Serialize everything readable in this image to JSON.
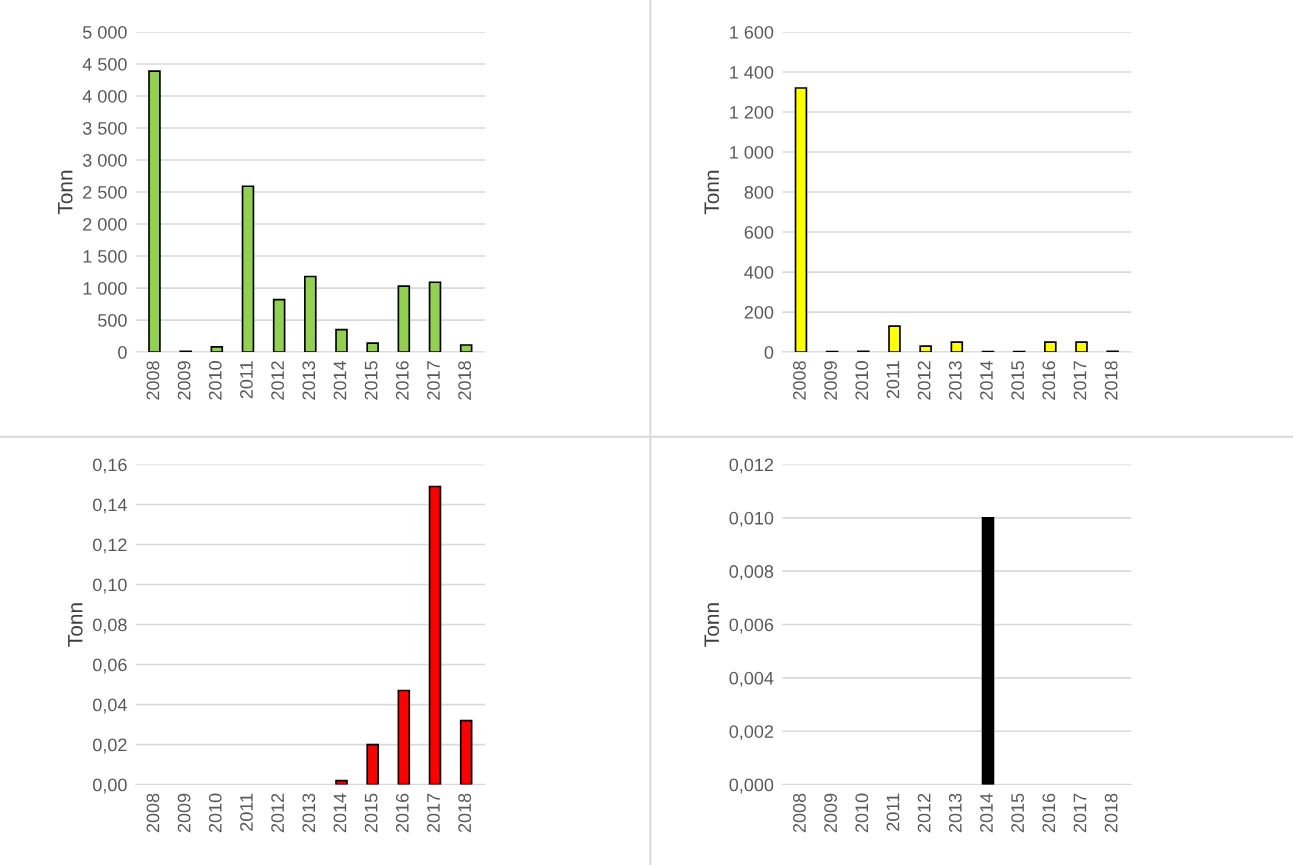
{
  "chart_data": [
    {
      "type": "bar",
      "ylabel": "Tonn",
      "categories": [
        "2008",
        "2009",
        "2010",
        "2011",
        "2012",
        "2013",
        "2014",
        "2015",
        "2016",
        "2017",
        "2018"
      ],
      "values": [
        4390,
        10,
        80,
        2590,
        820,
        1180,
        350,
        140,
        1030,
        1090,
        110
      ],
      "color": "#92d050",
      "ylim": [
        0,
        5000
      ],
      "yticks": [
        {
          "value": 0,
          "label": "0"
        },
        {
          "value": 500,
          "label": "500"
        },
        {
          "value": 1000,
          "label": "1 000"
        },
        {
          "value": 1500,
          "label": "1 500"
        },
        {
          "value": 2000,
          "label": "2 000"
        },
        {
          "value": 2500,
          "label": "2 500"
        },
        {
          "value": 3000,
          "label": "3 000"
        },
        {
          "value": 3500,
          "label": "3 500"
        },
        {
          "value": 4000,
          "label": "4 000"
        },
        {
          "value": 4500,
          "label": "4 500"
        },
        {
          "value": 5000,
          "label": "5 000"
        }
      ],
      "grid": "y"
    },
    {
      "type": "bar",
      "ylabel": "Tonn",
      "categories": [
        "2008",
        "2009",
        "2010",
        "2011",
        "2012",
        "2013",
        "2014",
        "2015",
        "2016",
        "2017",
        "2018"
      ],
      "values": [
        1320,
        2,
        3,
        130,
        30,
        50,
        2,
        2,
        50,
        50,
        3
      ],
      "color": "#ffff00",
      "ylim": [
        0,
        1600
      ],
      "yticks": [
        {
          "value": 0,
          "label": "0"
        },
        {
          "value": 200,
          "label": "200"
        },
        {
          "value": 400,
          "label": "400"
        },
        {
          "value": 600,
          "label": "600"
        },
        {
          "value": 800,
          "label": "800"
        },
        {
          "value": 1000,
          "label": "1 000"
        },
        {
          "value": 1200,
          "label": "1 200"
        },
        {
          "value": 1400,
          "label": "1 400"
        },
        {
          "value": 1600,
          "label": "1 600"
        }
      ],
      "grid": "y"
    },
    {
      "type": "bar",
      "ylabel": "Tonn",
      "categories": [
        "2008",
        "2009",
        "2010",
        "2011",
        "2012",
        "2013",
        "2014",
        "2015",
        "2016",
        "2017",
        "2018"
      ],
      "values": [
        null,
        null,
        null,
        null,
        null,
        null,
        0.002,
        0.02,
        0.047,
        0.149,
        0.032
      ],
      "color": "#ff0000",
      "ylim": [
        0,
        0.16
      ],
      "yticks": [
        {
          "value": 0,
          "label": "0,00"
        },
        {
          "value": 0.02,
          "label": "0,02"
        },
        {
          "value": 0.04,
          "label": "0,04"
        },
        {
          "value": 0.06,
          "label": "0,06"
        },
        {
          "value": 0.08,
          "label": "0,08"
        },
        {
          "value": 0.1,
          "label": "0,10"
        },
        {
          "value": 0.12,
          "label": "0,12"
        },
        {
          "value": 0.14,
          "label": "0,14"
        },
        {
          "value": 0.16,
          "label": "0,16"
        }
      ],
      "grid": "y"
    },
    {
      "type": "bar",
      "ylabel": "Tonn",
      "categories": [
        "2008",
        "2009",
        "2010",
        "2011",
        "2012",
        "2013",
        "2014",
        "2015",
        "2016",
        "2017",
        "2018"
      ],
      "values": [
        null,
        null,
        null,
        null,
        null,
        null,
        0.01,
        null,
        null,
        null,
        null
      ],
      "color": "#000000",
      "ylim": [
        0,
        0.012
      ],
      "yticks": [
        {
          "value": 0,
          "label": "0,000"
        },
        {
          "value": 0.002,
          "label": "0,002"
        },
        {
          "value": 0.004,
          "label": "0,004"
        },
        {
          "value": 0.006,
          "label": "0,006"
        },
        {
          "value": 0.008,
          "label": "0,008"
        },
        {
          "value": 0.01,
          "label": "0,010"
        },
        {
          "value": 0.012,
          "label": "0,012"
        }
      ],
      "grid": "y"
    }
  ]
}
